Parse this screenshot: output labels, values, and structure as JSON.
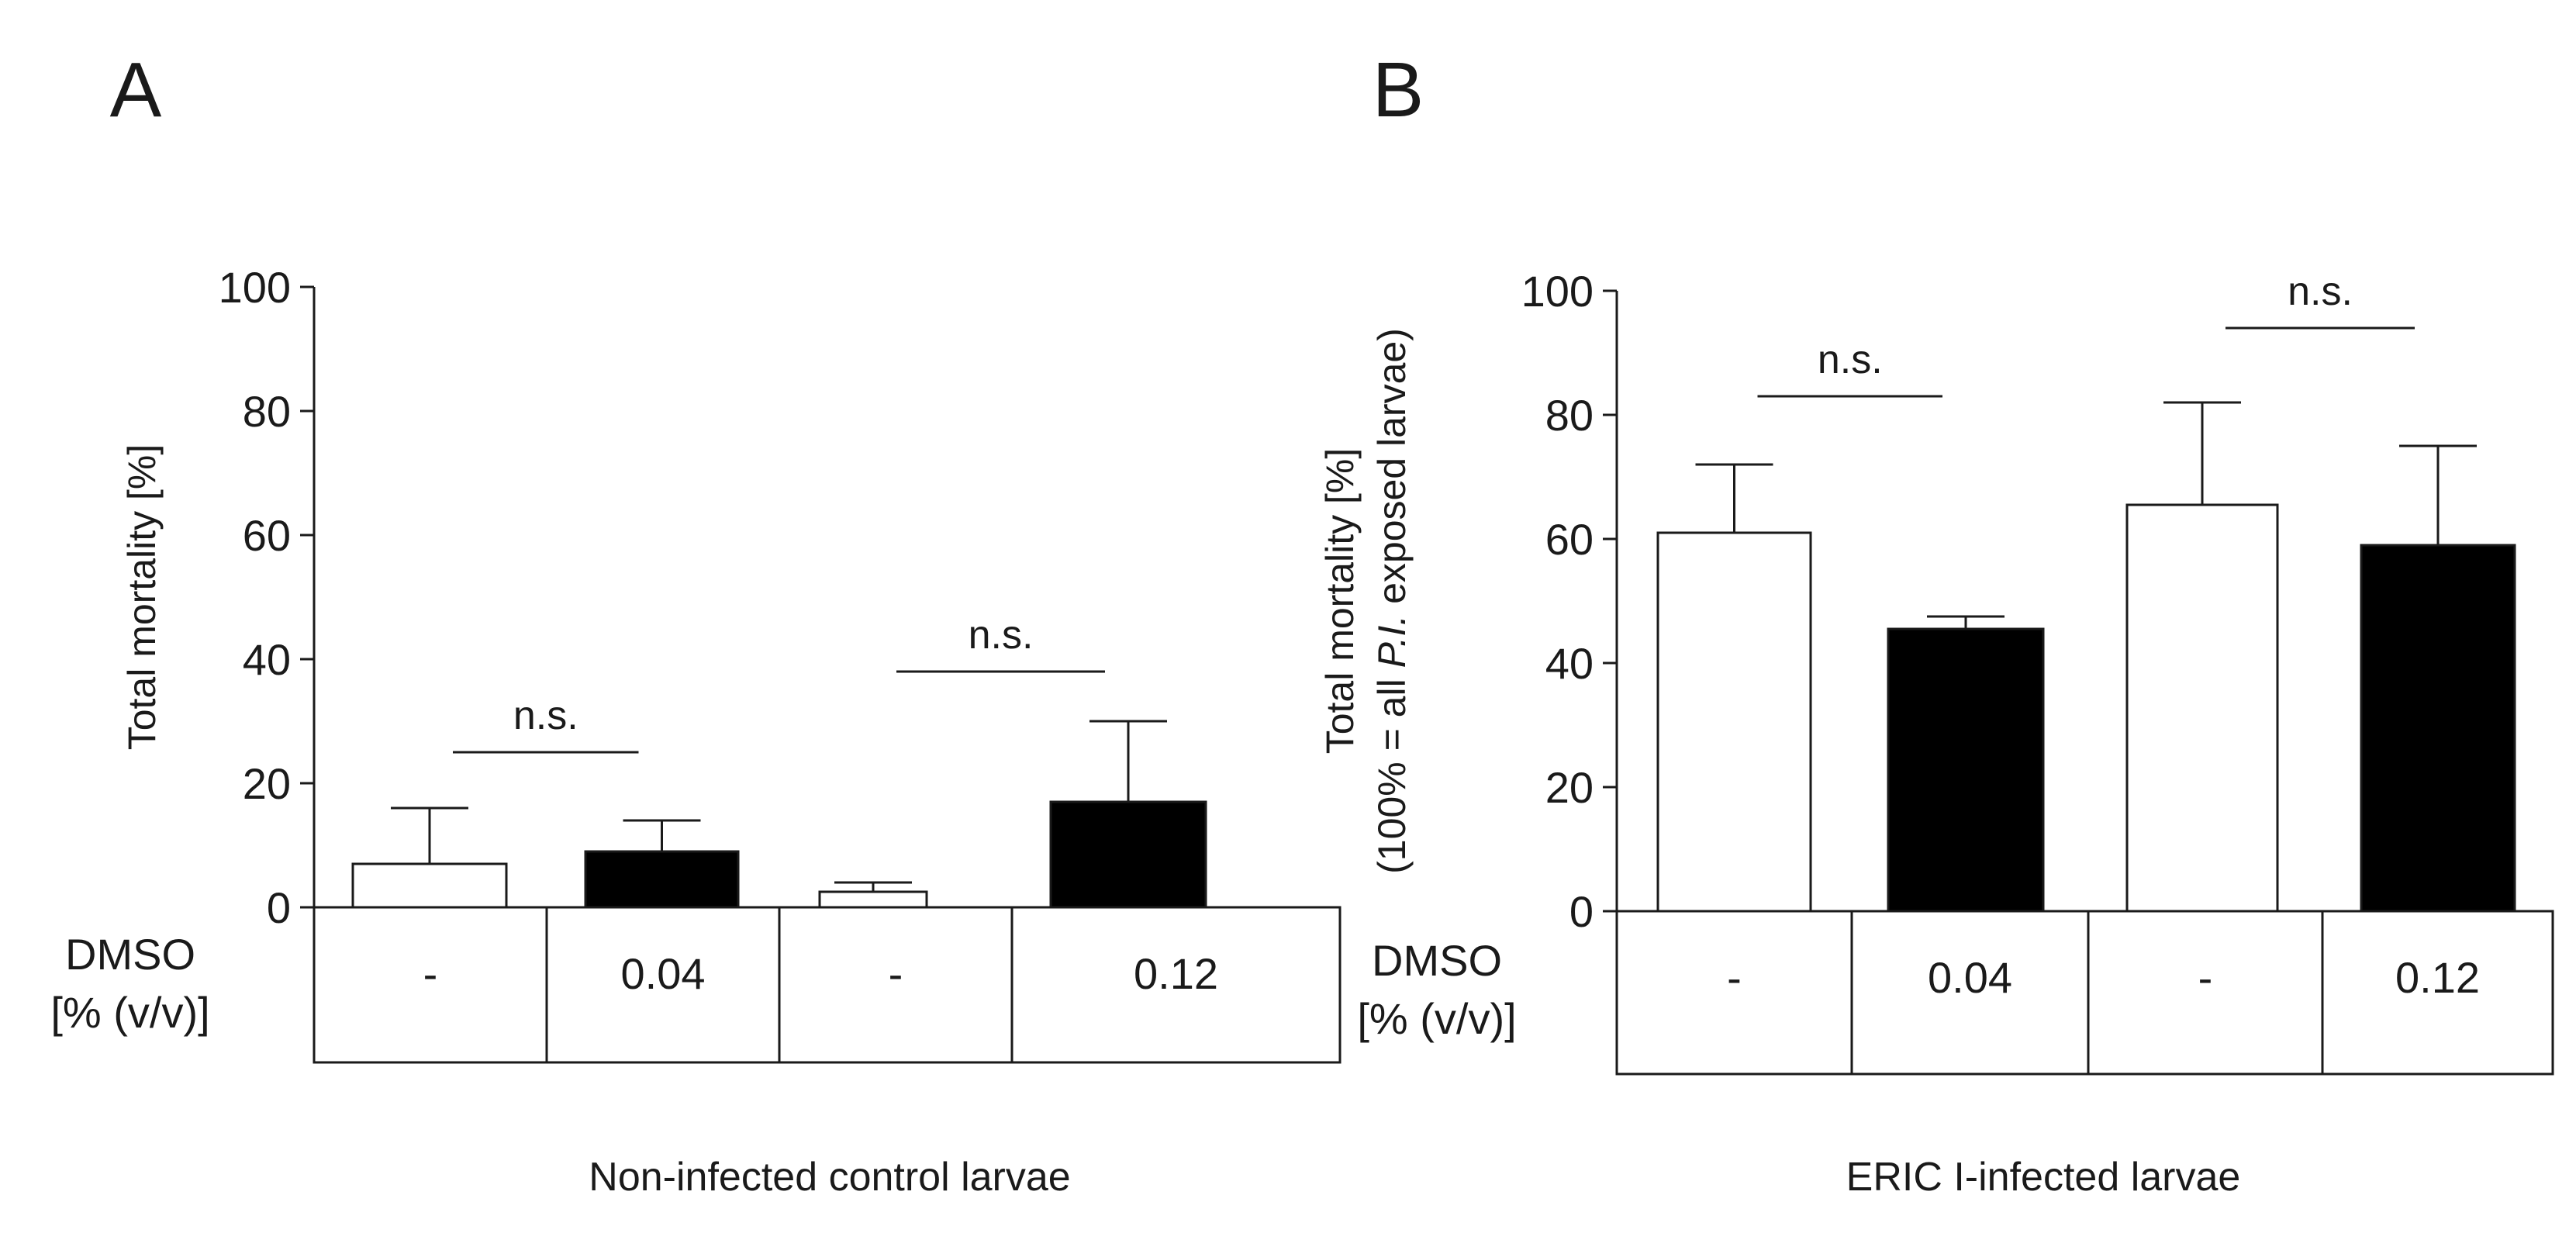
{
  "chart_data": [
    {
      "panel_label": "A",
      "type": "bar",
      "categories": [
        "-",
        "0.04",
        "-",
        "0.12"
      ],
      "values": [
        7,
        9,
        2.5,
        17
      ],
      "errors": [
        9,
        5,
        1.5,
        13
      ],
      "bar_colors": [
        "#ffffff",
        "#000000",
        "#ffffff",
        "#000000"
      ],
      "ylabel": [
        "Total mortality [%]"
      ],
      "ylim": [
        0,
        100
      ],
      "yticks": [
        0,
        20,
        40,
        60,
        80,
        100
      ],
      "row_header": [
        "DMSO",
        "[% (v/v)]"
      ],
      "xlabel": "Non-infected control larvae",
      "significance": [
        {
          "from": 0,
          "to": 1,
          "text": "n.s.",
          "level": 25
        },
        {
          "from": 2,
          "to": 3,
          "text": "n.s.",
          "level": 38
        }
      ]
    },
    {
      "panel_label": "B",
      "type": "bar",
      "categories": [
        "-",
        "0.04",
        "-",
        "0.12"
      ],
      "values": [
        61,
        45.5,
        65.5,
        59
      ],
      "errors": [
        11,
        2,
        16.5,
        16
      ],
      "bar_colors": [
        "#ffffff",
        "#000000",
        "#ffffff",
        "#000000"
      ],
      "ylabel": [
        "Total mortality [%]",
        "(100% = all P.I. exposed larvae)"
      ],
      "ylim": [
        0,
        100
      ],
      "yticks": [
        0,
        20,
        40,
        60,
        80,
        100
      ],
      "row_header": [
        "DMSO",
        "[% (v/v)]"
      ],
      "xlabel": "ERIC I-infected larvae",
      "significance": [
        {
          "from": 0,
          "to": 1,
          "text": "n.s.",
          "level": 83
        },
        {
          "from": 2,
          "to": 3,
          "text": "n.s.",
          "level": 94
        }
      ]
    }
  ]
}
